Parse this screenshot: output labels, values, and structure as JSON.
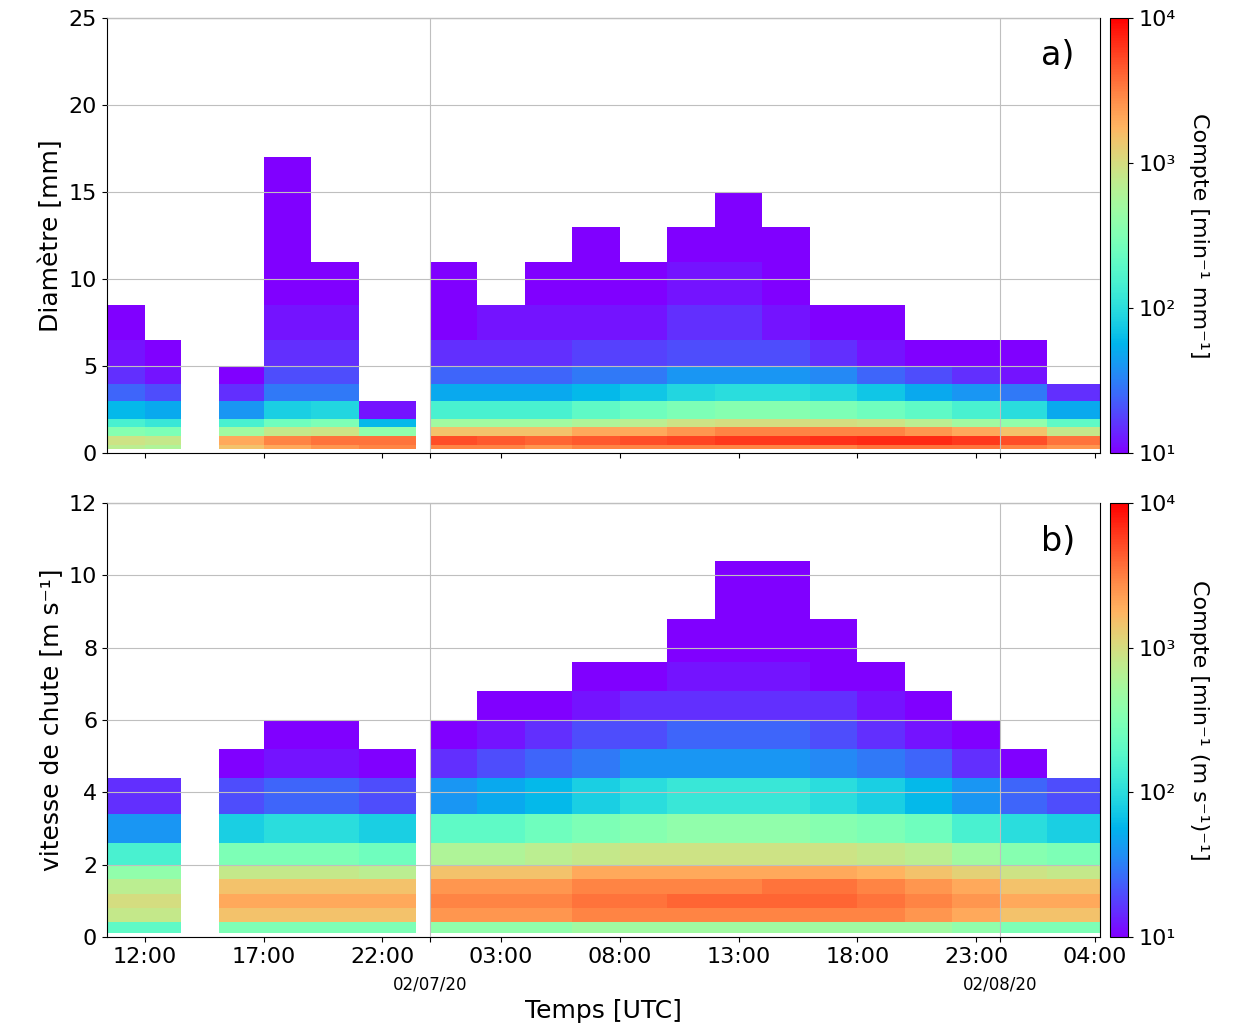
{
  "chart_data": [
    {
      "type": "heatmap",
      "annotation": "a)",
      "ylabel": "Diamètre [mm]",
      "tick_labels": "y",
      "grid": true,
      "xlim": [
        10.4,
        52.2
      ],
      "ylim": [
        0,
        25
      ],
      "yticks": [
        0,
        5,
        10,
        15,
        20,
        25
      ],
      "xticks": [
        {
          "value": 12,
          "label": "12:00"
        },
        {
          "value": 17,
          "label": "17:00"
        },
        {
          "value": 22,
          "label": "22:00"
        },
        {
          "value": 24,
          "label": "02/07/20"
        },
        {
          "value": 27,
          "label": "03:00"
        },
        {
          "value": 32,
          "label": "08:00"
        },
        {
          "value": 37,
          "label": "13:00"
        },
        {
          "value": 42,
          "label": "18:00"
        },
        {
          "value": 47,
          "label": "23:00"
        },
        {
          "value": 48,
          "label": "02/08/20"
        },
        {
          "value": 52,
          "label": "04:00"
        }
      ],
      "x_edges": [
        10.4,
        12,
        13.5,
        15.1,
        17,
        19,
        21,
        23.4,
        24,
        26,
        28,
        30,
        32,
        34,
        36,
        38,
        40,
        42,
        44,
        46,
        48,
        50,
        52.2
      ],
      "y_edges": [
        0.25,
        0.5,
        1,
        1.5,
        2,
        3,
        4,
        5,
        6.5,
        8.5,
        11,
        13,
        15,
        17,
        19,
        22
      ],
      "cells": [
        [
          700,
          900,
          350,
          150,
          60,
          25,
          15,
          12,
          10,
          null,
          null,
          null,
          null,
          null,
          null
        ],
        [
          600,
          800,
          300,
          120,
          50,
          20,
          12,
          10,
          null,
          null,
          null,
          null,
          null,
          null,
          null
        ],
        [
          null,
          null,
          null,
          null,
          null,
          null,
          null,
          null,
          null,
          null,
          null,
          null,
          null,
          null,
          null
        ],
        [
          1500,
          2000,
          500,
          150,
          40,
          15,
          10,
          null,
          null,
          null,
          null,
          null,
          null,
          null,
          null
        ],
        [
          2000,
          3000,
          800,
          250,
          80,
          30,
          20,
          15,
          12,
          10,
          10,
          10,
          10,
          null,
          null
        ],
        [
          2500,
          3500,
          900,
          300,
          90,
          30,
          20,
          15,
          12,
          10,
          null,
          null,
          null,
          null,
          null
        ],
        [
          3000,
          3500,
          400,
          60,
          12,
          null,
          null,
          null,
          null,
          null,
          null,
          null,
          null,
          null,
          null
        ],
        [
          null,
          null,
          null,
          null,
          null,
          null,
          null,
          null,
          null,
          null,
          null,
          null,
          null,
          null,
          null
        ],
        [
          3000,
          5000,
          1500,
          500,
          150,
          50,
          25,
          15,
          10,
          10,
          null,
          null,
          null,
          null,
          null
        ],
        [
          3000,
          4500,
          1500,
          500,
          150,
          50,
          25,
          15,
          12,
          null,
          null,
          null,
          null,
          null,
          null
        ],
        [
          2500,
          4000,
          1500,
          500,
          150,
          50,
          25,
          15,
          12,
          10,
          null,
          null,
          null,
          null,
          null
        ],
        [
          3000,
          4500,
          2000,
          600,
          200,
          60,
          30,
          18,
          12,
          10,
          10,
          null,
          null,
          null,
          null
        ],
        [
          3000,
          5000,
          2000,
          700,
          250,
          70,
          30,
          18,
          12,
          10,
          null,
          null,
          null,
          null,
          null
        ],
        [
          3000,
          5500,
          2500,
          900,
          300,
          90,
          40,
          20,
          15,
          12,
          10,
          null,
          null,
          null,
          null
        ],
        [
          3000,
          6000,
          3000,
          1000,
          350,
          100,
          40,
          20,
          15,
          12,
          10,
          10,
          null,
          null,
          null
        ],
        [
          3000,
          6000,
          3000,
          1000,
          350,
          100,
          40,
          20,
          12,
          10,
          10,
          null,
          null,
          null,
          null
        ],
        [
          3000,
          6500,
          3000,
          1000,
          300,
          90,
          35,
          15,
          10,
          null,
          null,
          null,
          null,
          null,
          null
        ],
        [
          3500,
          7000,
          3000,
          900,
          250,
          70,
          25,
          12,
          10,
          null,
          null,
          null,
          null,
          null,
          null
        ],
        [
          3500,
          7000,
          2500,
          700,
          200,
          50,
          20,
          10,
          null,
          null,
          null,
          null,
          null,
          null,
          null
        ],
        [
          3500,
          6000,
          2000,
          500,
          150,
          40,
          15,
          10,
          null,
          null,
          null,
          null,
          null,
          null,
          null
        ],
        [
          3000,
          5000,
          1500,
          400,
          100,
          30,
          12,
          10,
          null,
          null,
          null,
          null,
          null,
          null,
          null
        ],
        [
          2500,
          3500,
          800,
          200,
          50,
          15,
          null,
          null,
          null,
          null,
          null,
          null,
          null,
          null,
          null
        ]
      ],
      "colorbar_label": "Compte [min⁻¹ mm⁻¹]",
      "colorbar_range": [
        10,
        10000
      ],
      "colorbar_ticks": [
        {
          "value": 10,
          "label": "10¹"
        },
        {
          "value": 100,
          "label": "10²"
        },
        {
          "value": 1000,
          "label": "10³"
        },
        {
          "value": 10000,
          "label": "10⁴"
        }
      ]
    },
    {
      "type": "heatmap",
      "annotation": "b)",
      "ylabel": "vitesse de chute [m s⁻¹]",
      "xlabel": "Temps [UTC]",
      "grid": true,
      "xlim": [
        10.4,
        52.2
      ],
      "ylim": [
        0,
        12
      ],
      "yticks": [
        0,
        2,
        4,
        6,
        8,
        10,
        12
      ],
      "xticks": [
        {
          "value": 12,
          "label": "12:00"
        },
        {
          "value": 17,
          "label": "17:00"
        },
        {
          "value": 22,
          "label": "22:00"
        },
        {
          "value": 24,
          "label": "02/07/20"
        },
        {
          "value": 27,
          "label": "03:00"
        },
        {
          "value": 32,
          "label": "08:00"
        },
        {
          "value": 37,
          "label": "13:00"
        },
        {
          "value": 42,
          "label": "18:00"
        },
        {
          "value": 47,
          "label": "23:00"
        },
        {
          "value": 48,
          "label": "02/08/20"
        },
        {
          "value": 52,
          "label": "04:00"
        }
      ],
      "x_edges": [
        10.4,
        12,
        13.5,
        15.1,
        17,
        19,
        21,
        23.4,
        24,
        26,
        28,
        30,
        32,
        34,
        36,
        38,
        40,
        42,
        44,
        46,
        48,
        50,
        52.2
      ],
      "y_edges": [
        0.1,
        0.4,
        0.8,
        1.2,
        1.6,
        2,
        2.6,
        3.4,
        4.4,
        5.2,
        6,
        6.8,
        7.6,
        8.8,
        10.4,
        12
      ],
      "cells": [
        [
          200,
          800,
          1000,
          700,
          400,
          150,
          40,
          15,
          null,
          null,
          null,
          null,
          null,
          null,
          null
        ],
        [
          200,
          800,
          1000,
          700,
          400,
          150,
          40,
          15,
          null,
          null,
          null,
          null,
          null,
          null,
          null
        ],
        [
          null,
          null,
          null,
          null,
          null,
          null,
          null,
          null,
          null,
          null,
          null,
          null,
          null,
          null,
          null
        ],
        [
          300,
          1500,
          2000,
          1500,
          800,
          300,
          80,
          20,
          10,
          null,
          null,
          null,
          null,
          null,
          null
        ],
        [
          300,
          1500,
          2000,
          1500,
          800,
          300,
          100,
          25,
          12,
          10,
          null,
          null,
          null,
          null,
          null
        ],
        [
          300,
          1500,
          2000,
          1500,
          800,
          300,
          100,
          25,
          12,
          10,
          null,
          null,
          null,
          null,
          null
        ],
        [
          300,
          1500,
          2000,
          1500,
          700,
          250,
          80,
          20,
          10,
          null,
          null,
          null,
          null,
          null,
          null
        ],
        [
          null,
          null,
          null,
          null,
          null,
          null,
          null,
          null,
          null,
          null,
          null,
          null,
          null,
          null,
          null
        ],
        [
          400,
          2500,
          3000,
          2500,
          1500,
          600,
          200,
          40,
          15,
          10,
          null,
          null,
          null,
          null,
          null
        ],
        [
          400,
          2500,
          3000,
          2500,
          1500,
          600,
          200,
          50,
          20,
          12,
          10,
          null,
          null,
          null,
          null
        ],
        [
          400,
          2500,
          3000,
          2500,
          1500,
          700,
          250,
          60,
          25,
          15,
          10,
          null,
          null,
          null,
          null
        ],
        [
          500,
          3000,
          3500,
          3000,
          2000,
          800,
          300,
          80,
          30,
          20,
          12,
          10,
          null,
          null,
          null
        ],
        [
          500,
          3000,
          3500,
          3000,
          2000,
          900,
          350,
          100,
          40,
          20,
          15,
          10,
          null,
          null,
          null
        ],
        [
          500,
          3000,
          4000,
          3000,
          2000,
          900,
          400,
          120,
          40,
          25,
          15,
          12,
          10,
          null,
          null
        ],
        [
          500,
          3000,
          4000,
          3000,
          2000,
          900,
          400,
          120,
          40,
          25,
          15,
          12,
          10,
          10,
          null
        ],
        [
          500,
          3000,
          4000,
          3500,
          2000,
          900,
          400,
          120,
          40,
          25,
          15,
          12,
          10,
          10,
          null
        ],
        [
          500,
          3000,
          4000,
          3500,
          2000,
          900,
          350,
          100,
          35,
          20,
          15,
          10,
          10,
          null,
          null
        ],
        [
          500,
          3000,
          3500,
          3000,
          1800,
          800,
          300,
          80,
          30,
          15,
          12,
          10,
          null,
          null,
          null
        ],
        [
          500,
          2500,
          3000,
          2500,
          1500,
          700,
          250,
          60,
          25,
          12,
          10,
          null,
          null,
          null,
          null
        ],
        [
          400,
          2000,
          2500,
          2000,
          1200,
          500,
          150,
          40,
          15,
          10,
          null,
          null,
          null,
          null,
          null
        ],
        [
          300,
          1500,
          2000,
          1500,
          900,
          350,
          100,
          25,
          10,
          null,
          null,
          null,
          null,
          null,
          null
        ],
        [
          300,
          1500,
          2000,
          1500,
          800,
          300,
          80,
          20,
          null,
          null,
          null,
          null,
          null,
          null,
          null
        ]
      ],
      "colorbar_label": "Compte [min⁻¹ (m s⁻¹)⁻¹]",
      "colorbar_range": [
        10,
        10000
      ],
      "colorbar_ticks": [
        {
          "value": 10,
          "label": "10¹"
        },
        {
          "value": 100,
          "label": "10²"
        },
        {
          "value": 1000,
          "label": "10³"
        },
        {
          "value": 10000,
          "label": "10⁴"
        }
      ]
    }
  ]
}
